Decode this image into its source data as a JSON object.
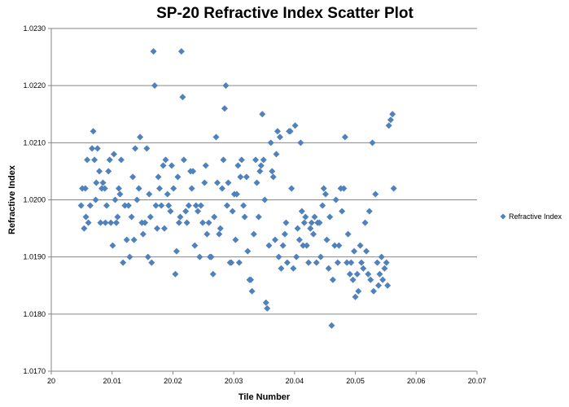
{
  "chart_data": {
    "type": "scatter",
    "title": "SP-20 Refractive Index Scatter Plot",
    "xlabel": "Tile Number",
    "ylabel": "Refractive  Index",
    "xlim": [
      20,
      20.07
    ],
    "ylim": [
      1.017,
      1.023
    ],
    "x_ticks": [
      "20",
      "20.01",
      "20.02",
      "20.03",
      "20.04",
      "20.05",
      "20.06",
      "20.07"
    ],
    "y_ticks": [
      "1.0170",
      "1.0180",
      "1.0190",
      "1.0200",
      "1.0210",
      "1.0220",
      "1.0230"
    ],
    "grid": true,
    "legend_position": "right",
    "marker_color": "#4f81bd",
    "series": [
      {
        "name": "Refractive Index",
        "points": [
          [
            20.0049,
            1.0199
          ],
          [
            20.0051,
            1.0202
          ],
          [
            20.0054,
            1.0195
          ],
          [
            20.0056,
            1.0202
          ],
          [
            20.0057,
            1.0197
          ],
          [
            20.0059,
            1.0207
          ],
          [
            20.0061,
            1.0196
          ],
          [
            20.0064,
            1.0199
          ],
          [
            20.0067,
            1.0209
          ],
          [
            20.0069,
            1.0212
          ],
          [
            20.0071,
            1.0207
          ],
          [
            20.0073,
            1.02
          ],
          [
            20.0074,
            1.0203
          ],
          [
            20.0076,
            1.0209
          ],
          [
            20.0079,
            1.0205
          ],
          [
            20.0081,
            1.0196
          ],
          [
            20.0083,
            1.0202
          ],
          [
            20.0085,
            1.0203
          ],
          [
            20.0088,
            1.0202
          ],
          [
            20.0089,
            1.0196
          ],
          [
            20.0091,
            1.0199
          ],
          [
            20.0094,
            1.0205
          ],
          [
            20.0096,
            1.0207
          ],
          [
            20.0098,
            1.0196
          ],
          [
            20.0101,
            1.0192
          ],
          [
            20.0103,
            1.0208
          ],
          [
            20.0105,
            1.02
          ],
          [
            20.0107,
            1.0196
          ],
          [
            20.0109,
            1.0197
          ],
          [
            20.0111,
            1.0202
          ],
          [
            20.0113,
            1.0201
          ],
          [
            20.0115,
            1.0207
          ],
          [
            20.0118,
            1.0189
          ],
          [
            20.0121,
            1.0199
          ],
          [
            20.0124,
            1.0193
          ],
          [
            20.0127,
            1.0199
          ],
          [
            20.0129,
            1.019
          ],
          [
            20.0132,
            1.0197
          ],
          [
            20.0134,
            1.0204
          ],
          [
            20.0136,
            1.0193
          ],
          [
            20.0138,
            1.0209
          ],
          [
            20.0141,
            1.02
          ],
          [
            20.0144,
            1.0202
          ],
          [
            20.0146,
            1.0211
          ],
          [
            20.0149,
            1.0196
          ],
          [
            20.0151,
            1.0194
          ],
          [
            20.0154,
            1.0196
          ],
          [
            20.0157,
            1.0209
          ],
          [
            20.0159,
            1.019
          ],
          [
            20.0161,
            1.0201
          ],
          [
            20.0163,
            1.0197
          ],
          [
            20.0165,
            1.0189
          ],
          [
            20.0168,
            1.0226
          ],
          [
            20.017,
            1.022
          ],
          [
            20.0172,
            1.0199
          ],
          [
            20.0174,
            1.0195
          ],
          [
            20.0176,
            1.0204
          ],
          [
            20.0178,
            1.0202
          ],
          [
            20.0181,
            1.0199
          ],
          [
            20.0184,
            1.0206
          ],
          [
            20.0186,
            1.0195
          ],
          [
            20.0188,
            1.0207
          ],
          [
            20.0191,
            1.0201
          ],
          [
            20.0193,
            1.0199
          ],
          [
            20.0196,
            1.0198
          ],
          [
            20.0198,
            1.0206
          ],
          [
            20.0201,
            1.0202
          ],
          [
            20.0204,
            1.0187
          ],
          [
            20.0206,
            1.0191
          ],
          [
            20.0208,
            1.0204
          ],
          [
            20.021,
            1.0196
          ],
          [
            20.0212,
            1.0197
          ],
          [
            20.0214,
            1.0226
          ],
          [
            20.0216,
            1.0218
          ],
          [
            20.0218,
            1.0207
          ],
          [
            20.0221,
            1.0198
          ],
          [
            20.0223,
            1.0196
          ],
          [
            20.0226,
            1.0199
          ],
          [
            20.0229,
            1.0205
          ],
          [
            20.0231,
            1.0202
          ],
          [
            20.0233,
            1.0205
          ],
          [
            20.0236,
            1.0192
          ],
          [
            20.0238,
            1.0199
          ],
          [
            20.0241,
            1.0198
          ],
          [
            20.0244,
            1.019
          ],
          [
            20.0246,
            1.0199
          ],
          [
            20.0249,
            1.0196
          ],
          [
            20.0252,
            1.0203
          ],
          [
            20.0254,
            1.0206
          ],
          [
            20.0256,
            1.0194
          ],
          [
            20.0259,
            1.0196
          ],
          [
            20.0261,
            1.019
          ],
          [
            20.0263,
            1.019
          ],
          [
            20.0266,
            1.0187
          ],
          [
            20.0268,
            1.0197
          ],
          [
            20.0271,
            1.0211
          ],
          [
            20.0273,
            1.0203
          ],
          [
            20.0276,
            1.0194
          ],
          [
            20.0278,
            1.0195
          ],
          [
            20.0281,
            1.0202
          ],
          [
            20.0283,
            1.0207
          ],
          [
            20.0285,
            1.0216
          ],
          [
            20.0287,
            1.022
          ],
          [
            20.0289,
            1.0199
          ],
          [
            20.0291,
            1.0203
          ],
          [
            20.0294,
            1.0189
          ],
          [
            20.0296,
            1.0189
          ],
          [
            20.0298,
            1.0198
          ],
          [
            20.0301,
            1.0201
          ],
          [
            20.0303,
            1.0193
          ],
          [
            20.0305,
            1.0201
          ],
          [
            20.0307,
            1.0206
          ],
          [
            20.0309,
            1.0189
          ],
          [
            20.0311,
            1.0204
          ],
          [
            20.0313,
            1.0207
          ],
          [
            20.0316,
            1.0199
          ],
          [
            20.0318,
            1.0197
          ],
          [
            20.0321,
            1.0204
          ],
          [
            20.0323,
            1.0191
          ],
          [
            20.0326,
            1.0186
          ],
          [
            20.0328,
            1.0186
          ],
          [
            20.033,
            1.0184
          ],
          [
            20.0333,
            1.0194
          ],
          [
            20.0336,
            1.0207
          ],
          [
            20.0338,
            1.0203
          ],
          [
            20.0341,
            1.0197
          ],
          [
            20.0343,
            1.0205
          ],
          [
            20.0345,
            1.0206
          ],
          [
            20.0347,
            1.0215
          ],
          [
            20.0349,
            1.0207
          ],
          [
            20.0351,
            1.02
          ],
          [
            20.0353,
            1.0182
          ],
          [
            20.0355,
            1.0181
          ],
          [
            20.0358,
            1.0192
          ],
          [
            20.0361,
            1.021
          ],
          [
            20.0363,
            1.0205
          ],
          [
            20.0365,
            1.0204
          ],
          [
            20.0368,
            1.0193
          ],
          [
            20.037,
            1.0208
          ],
          [
            20.0372,
            1.0212
          ],
          [
            20.0374,
            1.019
          ],
          [
            20.0376,
            1.0211
          ],
          [
            20.0378,
            1.0188
          ],
          [
            20.0381,
            1.0192
          ],
          [
            20.0384,
            1.0194
          ],
          [
            20.0386,
            1.0196
          ],
          [
            20.0388,
            1.0189
          ],
          [
            20.0391,
            1.0212
          ],
          [
            20.0393,
            1.0212
          ],
          [
            20.0395,
            1.0202
          ],
          [
            20.0398,
            1.0188
          ],
          [
            20.0401,
            1.0213
          ],
          [
            20.0403,
            1.019
          ],
          [
            20.0405,
            1.0195
          ],
          [
            20.0408,
            1.0193
          ],
          [
            20.041,
            1.021
          ],
          [
            20.0412,
            1.0198
          ],
          [
            20.0414,
            1.0192
          ],
          [
            20.0416,
            1.0196
          ],
          [
            20.0418,
            1.0197
          ],
          [
            20.042,
            1.0192
          ],
          [
            20.0423,
            1.0189
          ],
          [
            20.0426,
            1.0195
          ],
          [
            20.0428,
            1.0196
          ],
          [
            20.0431,
            1.0194
          ],
          [
            20.0433,
            1.0197
          ],
          [
            20.0436,
            1.0189
          ],
          [
            20.0438,
            1.0196
          ],
          [
            20.0441,
            1.0196
          ],
          [
            20.0443,
            1.019
          ],
          [
            20.0446,
            1.0199
          ],
          [
            20.0448,
            1.0202
          ],
          [
            20.0451,
            1.0201
          ],
          [
            20.0453,
            1.0193
          ],
          [
            20.0456,
            1.0188
          ],
          [
            20.0458,
            1.0197
          ],
          [
            20.0461,
            1.0178
          ],
          [
            20.0463,
            1.0186
          ],
          [
            20.0466,
            1.0192
          ],
          [
            20.0468,
            1.02
          ],
          [
            20.0471,
            1.0189
          ],
          [
            20.0473,
            1.0192
          ],
          [
            20.0476,
            1.0202
          ],
          [
            20.0478,
            1.0198
          ],
          [
            20.0481,
            1.0202
          ],
          [
            20.0483,
            1.0211
          ],
          [
            20.0486,
            1.0189
          ],
          [
            20.0488,
            1.0194
          ],
          [
            20.0491,
            1.0187
          ],
          [
            20.0493,
            1.0189
          ],
          [
            20.0496,
            1.0186
          ],
          [
            20.0498,
            1.0191
          ],
          [
            20.05,
            1.0183
          ],
          [
            20.0503,
            1.0187
          ],
          [
            20.0505,
            1.0184
          ],
          [
            20.0508,
            1.0192
          ],
          [
            20.051,
            1.0189
          ],
          [
            20.0513,
            1.0188
          ],
          [
            20.0516,
            1.0196
          ],
          [
            20.0518,
            1.0191
          ],
          [
            20.0521,
            1.0187
          ],
          [
            20.0523,
            1.0198
          ],
          [
            20.0525,
            1.0186
          ],
          [
            20.0528,
            1.021
          ],
          [
            20.053,
            1.0184
          ],
          [
            20.0533,
            1.0201
          ],
          [
            20.0536,
            1.0189
          ],
          [
            20.0538,
            1.0185
          ],
          [
            20.054,
            1.0187
          ],
          [
            20.0543,
            1.019
          ],
          [
            20.0545,
            1.0186
          ],
          [
            20.0548,
            1.0188
          ],
          [
            20.0551,
            1.0189
          ],
          [
            20.0553,
            1.0185
          ],
          [
            20.0555,
            1.0213
          ],
          [
            20.0558,
            1.0214
          ],
          [
            20.0561,
            1.0215
          ],
          [
            20.0563,
            1.0202
          ]
        ]
      }
    ]
  }
}
